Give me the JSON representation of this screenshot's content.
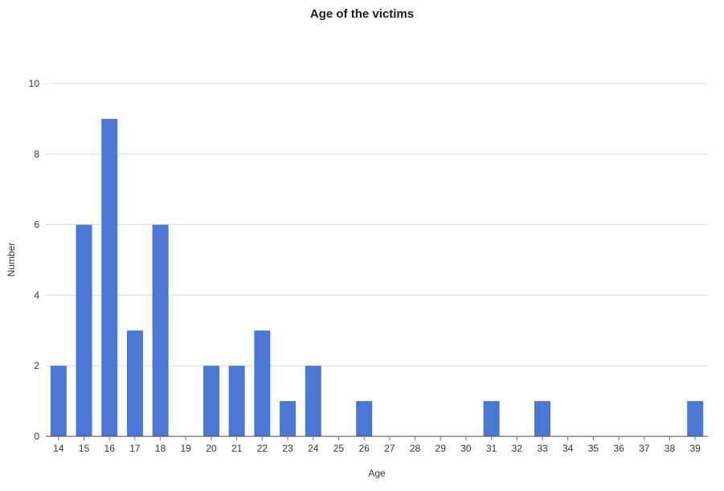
{
  "chart_data": {
    "type": "bar",
    "title": "Age of the victims",
    "xlabel": "Age",
    "ylabel": "Number",
    "categories": [
      14,
      15,
      16,
      17,
      18,
      19,
      20,
      21,
      22,
      23,
      24,
      25,
      26,
      27,
      28,
      29,
      30,
      31,
      32,
      33,
      34,
      35,
      36,
      37,
      38,
      39
    ],
    "values": [
      2,
      6,
      9,
      3,
      6,
      0,
      2,
      2,
      3,
      1,
      2,
      0,
      1,
      0,
      0,
      0,
      0,
      1,
      0,
      1,
      0,
      0,
      0,
      0,
      0,
      1
    ],
    "ylim": [
      0,
      10
    ],
    "yticks": [
      0,
      2,
      4,
      6,
      8,
      10
    ],
    "grid": true,
    "legend_position": "none",
    "colors": {
      "bar": "#4a77d4",
      "gridline": "#dadce0",
      "axis_line": "#474747",
      "tick_mark": "#747474",
      "tick_text": "#333333",
      "title_text": "#1b1b1b"
    }
  }
}
